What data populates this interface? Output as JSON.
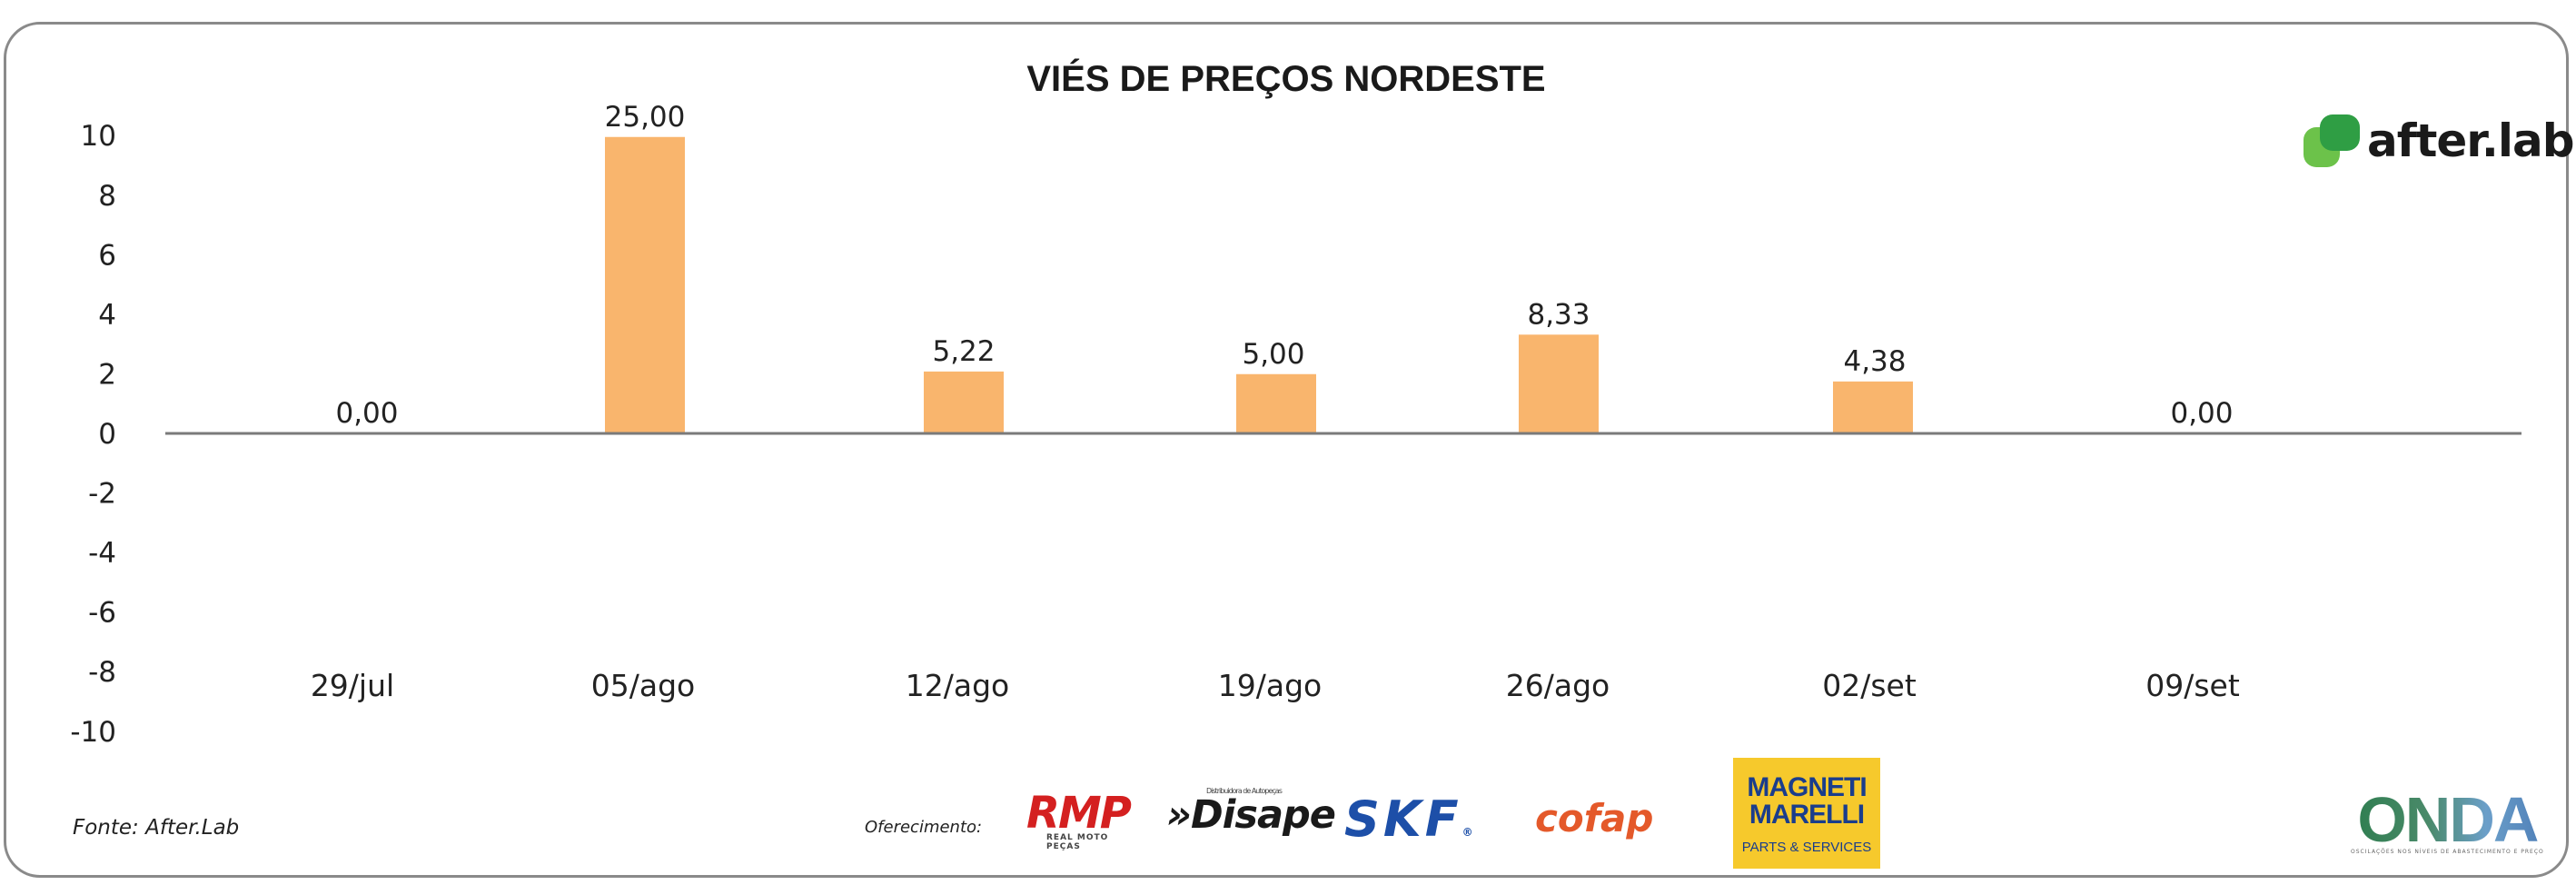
{
  "chart_data": {
    "type": "bar",
    "title": "VIÉS DE PREÇOS NORDESTE",
    "categories": [
      "29/jul",
      "05/ago",
      "12/ago",
      "19/ago",
      "26/ago",
      "02/set",
      "09/set"
    ],
    "values": [
      0.0,
      25.0,
      5.22,
      5.0,
      8.33,
      4.38,
      0.0
    ],
    "data_labels": [
      "0,00",
      "25,00",
      "5,22",
      "5,00",
      "8,33",
      "4,38",
      "0,00"
    ],
    "yticks": [
      "10",
      "8",
      "6",
      "4",
      "2",
      "0",
      "-2",
      "-4",
      "-6",
      "-8",
      "-10"
    ],
    "ylim": [
      -10,
      10
    ],
    "grid": false,
    "bar_color": "#f9b56d",
    "axis_color": "#7a7a7a"
  },
  "footer": {
    "source": "Fonte: After.Lab",
    "offer_label": "Oferecimento:"
  },
  "logos": {
    "after_lab": "after.lab",
    "rmp": "RMP",
    "rmp_sub": "REAL MOTO PEÇAS",
    "disape": "»Disape",
    "disape_sub": "Distribuidora de Autopeças",
    "skf": "SKF",
    "skf_reg": "®",
    "cofop": "cofap",
    "magneti_1": "MAGNETI",
    "magneti_2": "MARELLI",
    "magneti_3": "PARTS & SERVICES",
    "onda": "ONDA",
    "onda_sub": "OSCILAÇÕES NOS NÍVEIS DE ABASTECIMENTO E PREÇO"
  }
}
